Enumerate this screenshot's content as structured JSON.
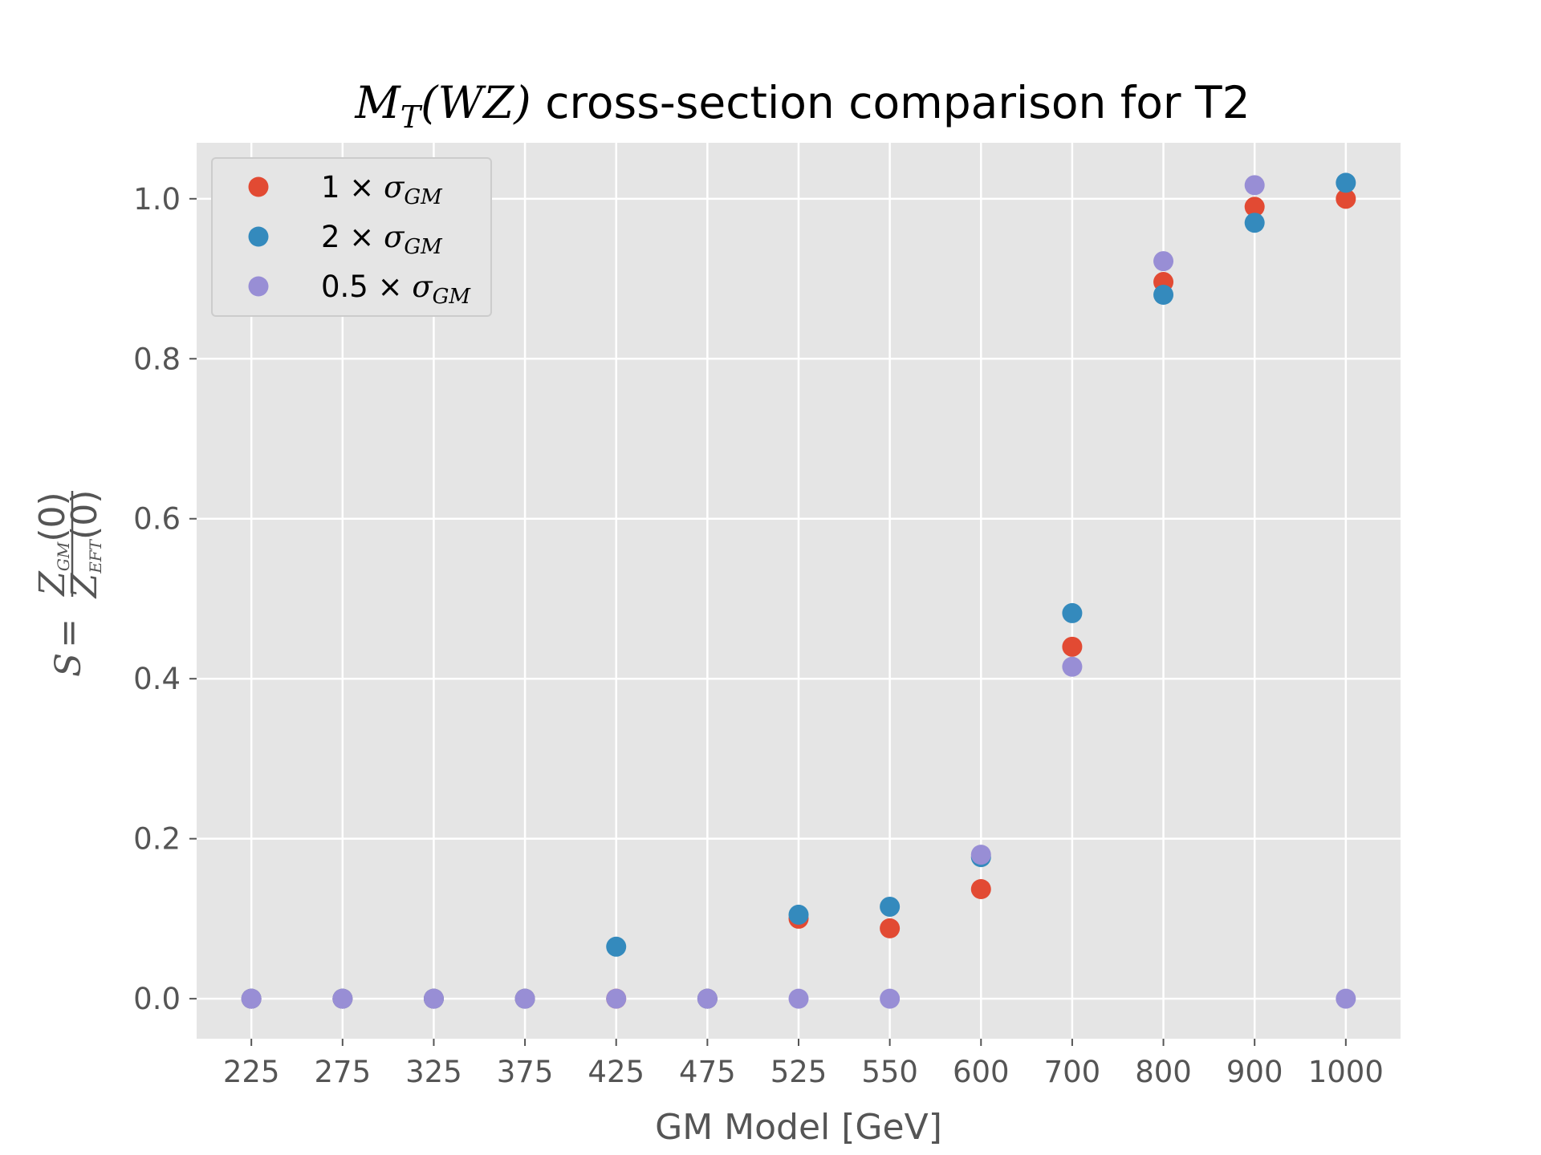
{
  "chart_data": {
    "type": "scatter",
    "title": {
      "var": "M",
      "sub": "T",
      "arg": "(WZ)",
      "rest": " cross-section comparison for T2"
    },
    "xlabel": "GM Model [GeV]",
    "ylabel": {
      "lhs": "S = ",
      "num_var": "Z",
      "num_sub": "GM",
      "num_arg": "(0)",
      "den_var": "Z",
      "den_sub": "EFT",
      "den_arg": "(0)"
    },
    "categories": [
      "225",
      "275",
      "325",
      "375",
      "425",
      "475",
      "525",
      "550",
      "600",
      "700",
      "800",
      "900",
      "1000"
    ],
    "ylim": [
      -0.05,
      1.07
    ],
    "yticks": [
      0.0,
      0.2,
      0.4,
      0.6,
      0.8,
      1.0
    ],
    "ytick_labels": [
      "0.0",
      "0.2",
      "0.4",
      "0.6",
      "0.8",
      "1.0"
    ],
    "grid": true,
    "legend_position": "top-left",
    "background_color": "#e5e5e5",
    "series": [
      {
        "name": "1 × σ",
        "name_sub": "GM",
        "color": "#e24a33",
        "values": [
          0.0,
          0.0,
          0.0,
          0.0,
          0.0,
          0.0,
          0.1,
          0.088,
          0.137,
          0.44,
          0.896,
          0.99,
          1.0
        ]
      },
      {
        "name": "2 × σ",
        "name_sub": "GM",
        "color": "#348abd",
        "values": [
          0.0,
          0.0,
          0.0,
          0.0,
          0.065,
          0.0,
          0.105,
          0.115,
          0.177,
          0.482,
          0.88,
          0.97,
          1.02
        ]
      },
      {
        "name": "0.5 × σ",
        "name_sub": "GM",
        "color": "#988ed5",
        "values": [
          0.0,
          0.0,
          0.0,
          0.0,
          0.0,
          0.0,
          0.0,
          0.0,
          0.18,
          0.415,
          0.922,
          1.017,
          0.0
        ]
      }
    ]
  }
}
